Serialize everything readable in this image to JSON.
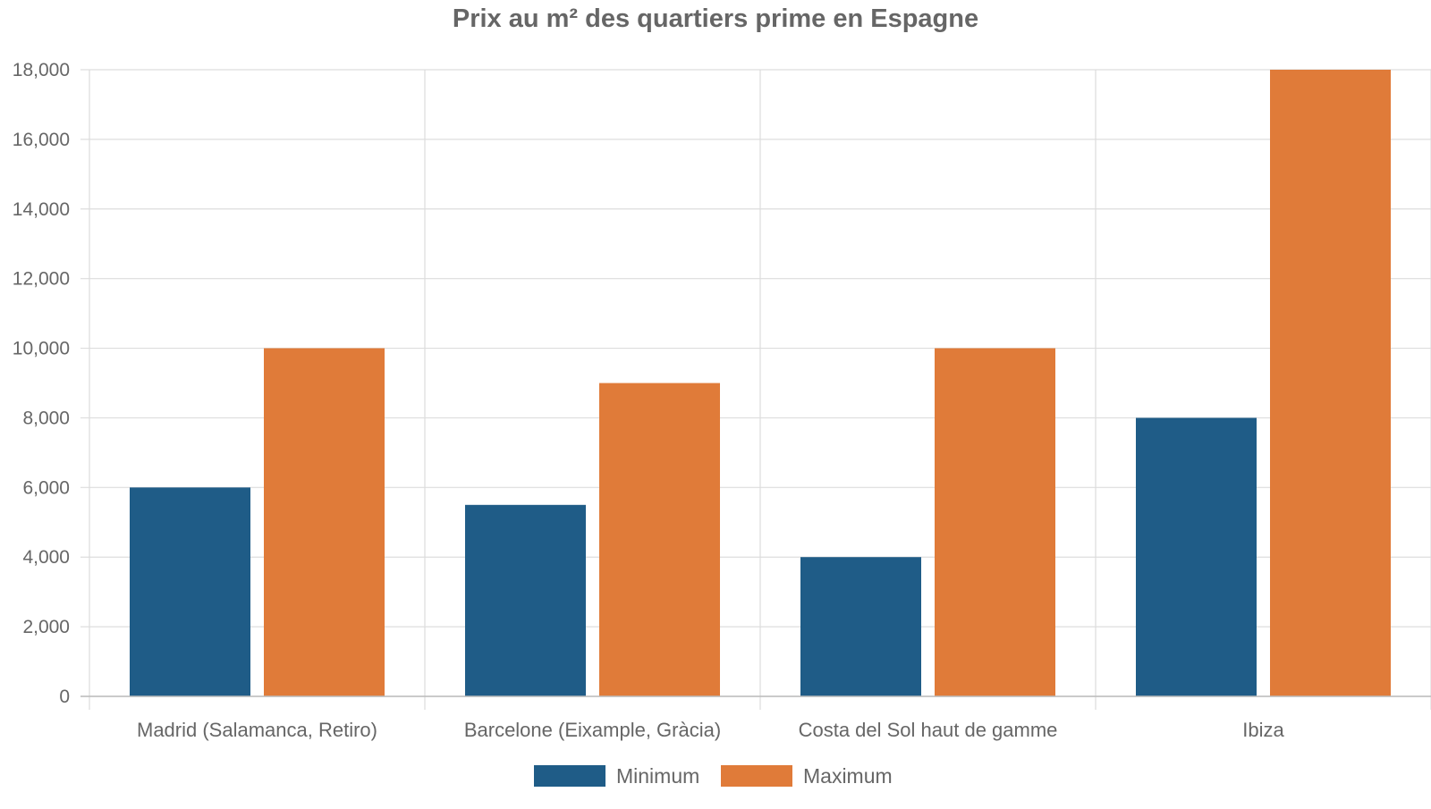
{
  "chart_data": {
    "type": "bar",
    "title": "Prix au m² des quartiers prime en Espagne",
    "categories": [
      "Madrid (Salamanca, Retiro)",
      "Barcelone (Eixample, Gràcia)",
      "Costa del Sol haut de gamme",
      "Ibiza"
    ],
    "series": [
      {
        "name": "Minimum",
        "values": [
          6000,
          5500,
          4000,
          8000
        ],
        "color": "#1f5c87"
      },
      {
        "name": "Maximum",
        "values": [
          10000,
          9000,
          10000,
          18000
        ],
        "color": "#e07b39"
      }
    ],
    "ylim": [
      0,
      18000
    ],
    "yticks": [
      0,
      2000,
      4000,
      6000,
      8000,
      10000,
      12000,
      14000,
      16000,
      18000
    ],
    "ytick_labels": [
      "0",
      "2,000",
      "4,000",
      "6,000",
      "8,000",
      "10,000",
      "12,000",
      "14,000",
      "16,000",
      "18,000"
    ],
    "grid": true,
    "legend_position": "bottom-center",
    "colors": {
      "text": "#666666",
      "grid": "#dddddd",
      "axis": "#bbbbbb"
    }
  }
}
